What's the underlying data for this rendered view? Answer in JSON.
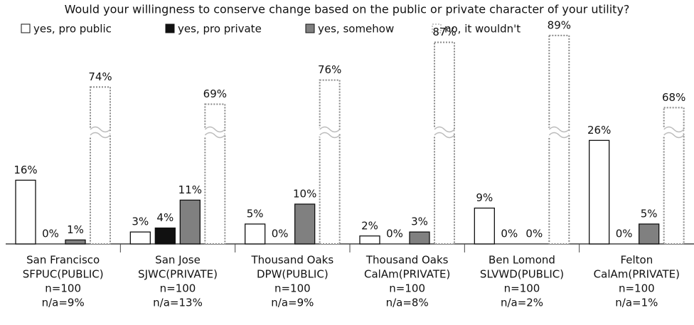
{
  "chart_data": {
    "type": "bar",
    "title": "Would your willingness to conserve change based on the public or private character of your utility?",
    "categories": [
      [
        "San Francisco",
        "SFPUC(PUBLIC)",
        "n=100",
        "n/a=9%"
      ],
      [
        "San Jose",
        "SJWC(PRIVATE)",
        "n=100",
        "n/a=13%"
      ],
      [
        "Thousand Oaks",
        "DPW(PUBLIC)",
        "n=100",
        "n/a=9%"
      ],
      [
        "Thousand Oaks",
        "CalAm(PRIVATE)",
        "n=100",
        "n/a=8%"
      ],
      [
        "Ben Lomond",
        "SLVWD(PUBLIC)",
        "n=100",
        "n/a=2%"
      ],
      [
        "Felton",
        "CalAm(PRIVATE)",
        "n=100",
        "n/a=1%"
      ]
    ],
    "series": [
      {
        "name": "yes, pro public",
        "color": "#ffffff",
        "values": [
          16,
          3,
          5,
          2,
          9,
          26
        ],
        "value_labels": [
          "16%",
          "3%",
          "5%",
          "2%",
          "9%",
          "26%"
        ]
      },
      {
        "name": "yes, pro private",
        "color": "#111111",
        "values": [
          0,
          4,
          0,
          0,
          0,
          0
        ],
        "value_labels": [
          "0%",
          "4%",
          "0%",
          "0%",
          "0%",
          "0%"
        ]
      },
      {
        "name": "yes, somehow",
        "color": "#808080",
        "values": [
          1,
          11,
          10,
          3,
          0,
          5
        ],
        "value_labels": [
          "1%",
          "11%",
          "10%",
          "3%",
          "0%",
          "5%"
        ]
      },
      {
        "name": "no, it wouldn't",
        "color": "#ffffff",
        "dotted": true,
        "values": [
          74,
          69,
          76,
          87,
          89,
          68
        ],
        "value_labels": [
          "74%",
          "69%",
          "76%",
          "87%",
          "89%",
          "68%"
        ]
      }
    ],
    "ylim": [
      0,
      90
    ],
    "axis_break": [
      30,
      60
    ]
  }
}
